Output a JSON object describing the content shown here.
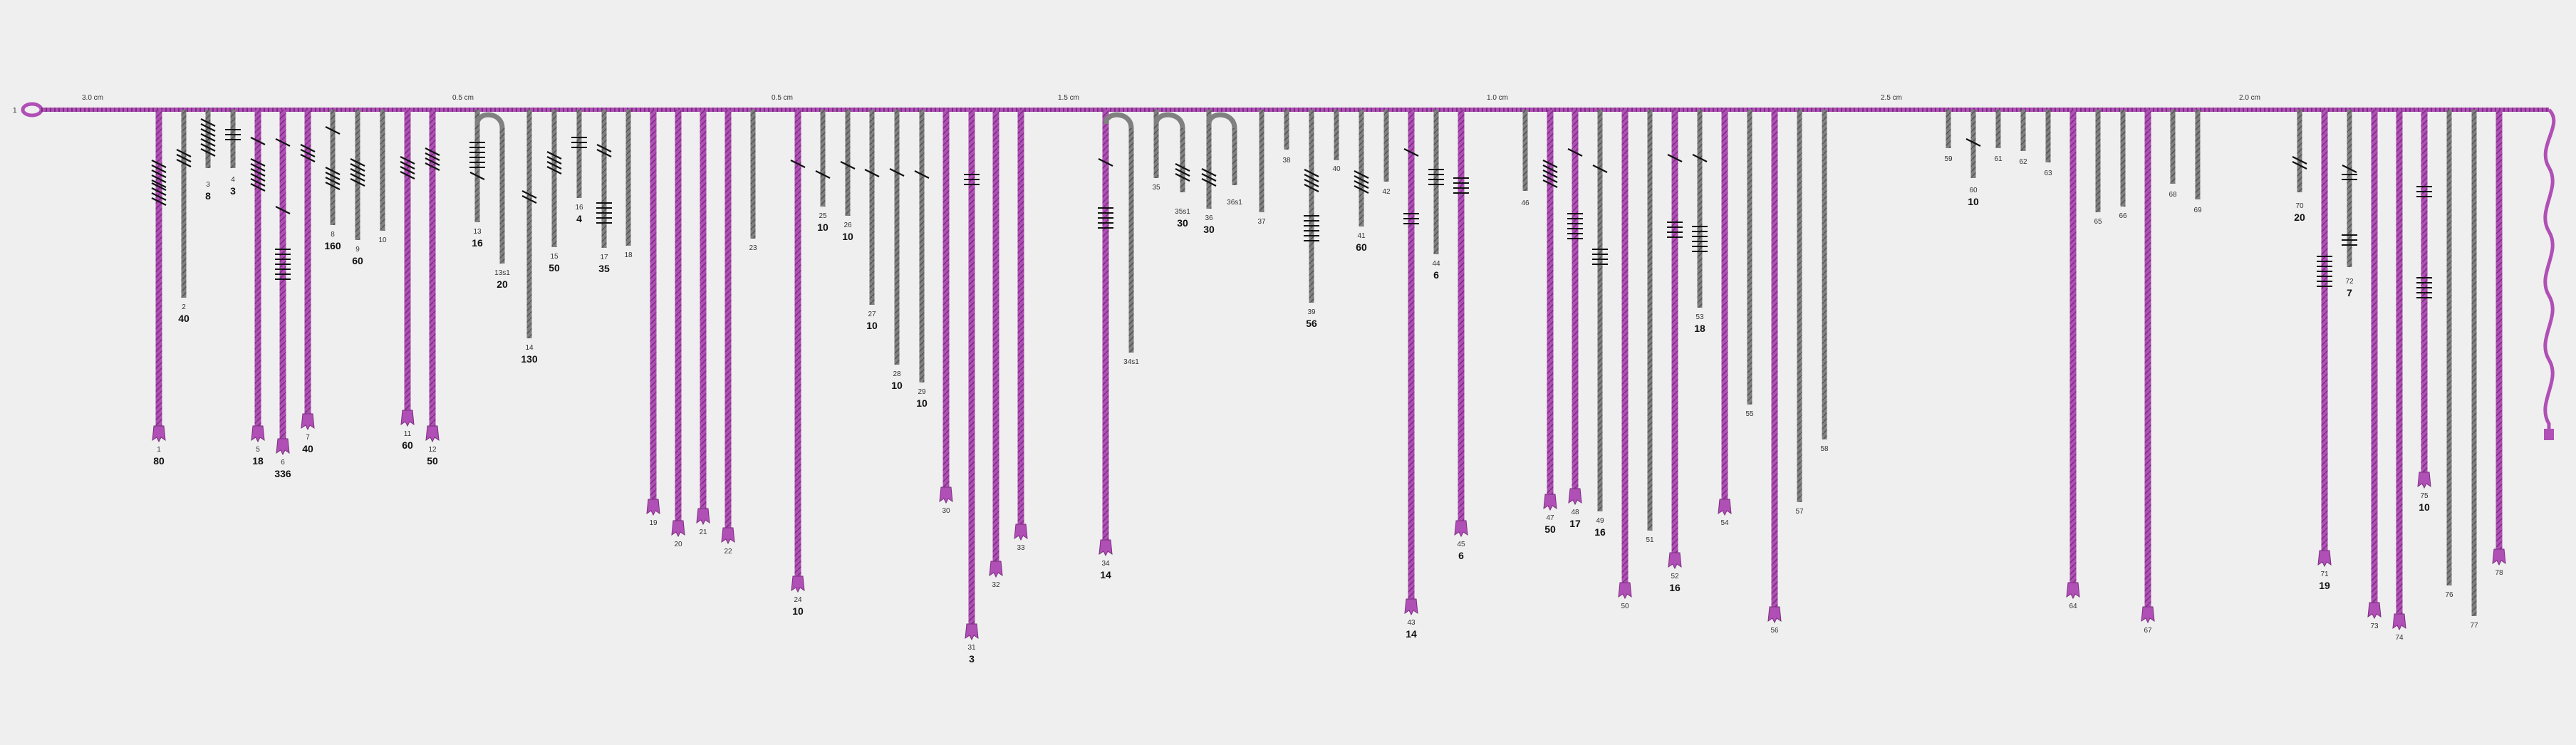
{
  "colors": {
    "primary": "#b04fb5",
    "secondary": "#808080",
    "background": "#efefef",
    "knot": "#111111"
  },
  "main_cord": {
    "label": "1",
    "end": "wavy"
  },
  "spacings": [
    {
      "text": "3.0 cm",
      "at_cord": "1"
    },
    {
      "text": "0.5 cm",
      "at_cord": "12"
    },
    {
      "text": "0.5 cm",
      "at_cord": "23"
    },
    {
      "text": "1.5 cm",
      "at_cord": "33"
    },
    {
      "text": "1.0 cm",
      "at_cord": "45"
    },
    {
      "text": "2.5 cm",
      "at_cord": "58"
    },
    {
      "text": "2.0 cm",
      "at_cord": "69"
    }
  ],
  "pendants": [
    {
      "id": "1",
      "value": "80",
      "color": "primary"
    },
    {
      "id": "2",
      "value": "40",
      "color": "secondary"
    },
    {
      "id": "3",
      "value": "8",
      "color": "secondary"
    },
    {
      "id": "4",
      "value": "3",
      "color": "secondary"
    },
    {
      "id": "5",
      "value": "18",
      "color": "primary"
    },
    {
      "id": "6",
      "value": "336",
      "color": "primary"
    },
    {
      "id": "7",
      "value": "40",
      "color": "primary"
    },
    {
      "id": "8",
      "value": "160",
      "color": "secondary"
    },
    {
      "id": "9",
      "value": "60",
      "color": "secondary"
    },
    {
      "id": "10",
      "value": "",
      "color": "secondary"
    },
    {
      "id": "11",
      "value": "60",
      "color": "primary"
    },
    {
      "id": "12",
      "value": "50",
      "color": "primary"
    },
    {
      "id": "13",
      "value": "16",
      "color": "secondary"
    },
    {
      "id": "13s1",
      "value": "20",
      "color": "secondary"
    },
    {
      "id": "14",
      "value": "130",
      "color": "secondary"
    },
    {
      "id": "15",
      "value": "50",
      "color": "secondary"
    },
    {
      "id": "16",
      "value": "4",
      "color": "secondary"
    },
    {
      "id": "17",
      "value": "35",
      "color": "secondary"
    },
    {
      "id": "18",
      "value": "",
      "color": "secondary"
    },
    {
      "id": "19",
      "value": "",
      "color": "primary"
    },
    {
      "id": "20",
      "value": "",
      "color": "primary"
    },
    {
      "id": "21",
      "value": "",
      "color": "primary"
    },
    {
      "id": "22",
      "value": "",
      "color": "primary"
    },
    {
      "id": "23",
      "value": "",
      "color": "secondary"
    },
    {
      "id": "24",
      "value": "10",
      "color": "primary"
    },
    {
      "id": "25",
      "value": "10",
      "color": "secondary"
    },
    {
      "id": "26",
      "value": "10",
      "color": "secondary"
    },
    {
      "id": "27",
      "value": "10",
      "color": "secondary"
    },
    {
      "id": "28",
      "value": "10",
      "color": "secondary"
    },
    {
      "id": "29",
      "value": "10",
      "color": "secondary"
    },
    {
      "id": "30",
      "value": "",
      "color": "primary"
    },
    {
      "id": "31",
      "value": "3",
      "color": "primary"
    },
    {
      "id": "32",
      "value": "",
      "color": "primary"
    },
    {
      "id": "33",
      "value": "",
      "color": "primary"
    },
    {
      "id": "34",
      "value": "14",
      "color": "primary"
    },
    {
      "id": "34s1",
      "value": "",
      "color": "secondary"
    },
    {
      "id": "35",
      "value": "",
      "color": "secondary"
    },
    {
      "id": "35s1",
      "value": "30",
      "color": "secondary"
    },
    {
      "id": "36",
      "value": "30",
      "color": "secondary"
    },
    {
      "id": "36s1",
      "value": "",
      "color": "secondary"
    },
    {
      "id": "37",
      "value": "",
      "color": "secondary"
    },
    {
      "id": "38",
      "value": "",
      "color": "secondary"
    },
    {
      "id": "39",
      "value": "56",
      "color": "secondary"
    },
    {
      "id": "40",
      "value": "",
      "color": "secondary"
    },
    {
      "id": "41",
      "value": "60",
      "color": "secondary"
    },
    {
      "id": "42",
      "value": "",
      "color": "secondary"
    },
    {
      "id": "43",
      "value": "14",
      "color": "primary"
    },
    {
      "id": "44",
      "value": "6",
      "color": "secondary"
    },
    {
      "id": "45",
      "value": "6",
      "color": "primary"
    },
    {
      "id": "46",
      "value": "",
      "color": "secondary"
    },
    {
      "id": "47",
      "value": "50",
      "color": "primary"
    },
    {
      "id": "48",
      "value": "17",
      "color": "primary"
    },
    {
      "id": "49",
      "value": "16",
      "color": "secondary"
    },
    {
      "id": "50",
      "value": "",
      "color": "primary"
    },
    {
      "id": "51",
      "value": "",
      "color": "secondary"
    },
    {
      "id": "52",
      "value": "16",
      "color": "primary"
    },
    {
      "id": "53",
      "value": "18",
      "color": "secondary"
    },
    {
      "id": "54",
      "value": "",
      "color": "primary"
    },
    {
      "id": "55",
      "value": "",
      "color": "secondary"
    },
    {
      "id": "56",
      "value": "",
      "color": "primary"
    },
    {
      "id": "57",
      "value": "",
      "color": "secondary"
    },
    {
      "id": "58",
      "value": "",
      "color": "secondary"
    },
    {
      "id": "59",
      "value": "",
      "color": "secondary"
    },
    {
      "id": "60",
      "value": "10",
      "color": "secondary"
    },
    {
      "id": "61",
      "value": "",
      "color": "secondary"
    },
    {
      "id": "62",
      "value": "",
      "color": "secondary"
    },
    {
      "id": "63",
      "value": "",
      "color": "secondary"
    },
    {
      "id": "64",
      "value": "",
      "color": "primary"
    },
    {
      "id": "65",
      "value": "",
      "color": "secondary"
    },
    {
      "id": "66",
      "value": "",
      "color": "secondary"
    },
    {
      "id": "67",
      "value": "",
      "color": "primary"
    },
    {
      "id": "68",
      "value": "",
      "color": "secondary"
    },
    {
      "id": "69",
      "value": "",
      "color": "secondary"
    },
    {
      "id": "70",
      "value": "20",
      "color": "secondary"
    },
    {
      "id": "71",
      "value": "19",
      "color": "primary"
    },
    {
      "id": "72",
      "value": "7",
      "color": "secondary"
    },
    {
      "id": "73",
      "value": "",
      "color": "primary"
    },
    {
      "id": "74",
      "value": "",
      "color": "primary"
    },
    {
      "id": "75",
      "value": "10",
      "color": "primary"
    },
    {
      "id": "76",
      "value": "",
      "color": "secondary"
    },
    {
      "id": "77",
      "value": "",
      "color": "secondary"
    },
    {
      "id": "78",
      "value": "",
      "color": "primary"
    }
  ]
}
